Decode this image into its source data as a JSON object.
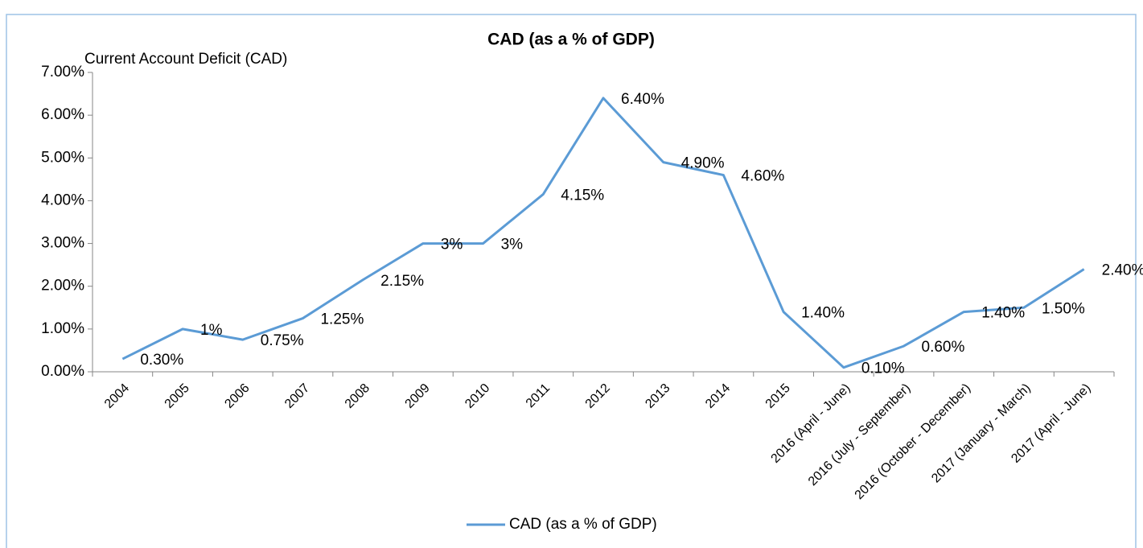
{
  "chart_data": {
    "type": "line",
    "title": "CAD (as a % of GDP)",
    "y_label": "Current Account Deficit (CAD)",
    "categories": [
      "2004",
      "2005",
      "2006",
      "2007",
      "2008",
      "2009",
      "2010",
      "2011",
      "2012",
      "2013",
      "2014",
      "2015",
      "2016 (April - June)",
      "2016 (July - September)",
      "2016 (October - December)",
      "2017 (January - March)",
      "2017 (April - June)"
    ],
    "series": [
      {
        "name": "CAD (as a % of GDP)",
        "color": "#5b9bd5",
        "values": [
          0.3,
          1,
          0.75,
          1.25,
          2.15,
          3,
          3,
          4.15,
          6.4,
          4.9,
          4.6,
          1.4,
          0.1,
          0.6,
          1.4,
          1.5,
          2.4
        ],
        "value_labels": [
          "0.30%",
          "1%",
          "0.75%",
          "1.25%",
          "2.15%",
          "3%",
          "3%",
          "4.15%",
          "6.40%",
          "4.90%",
          "4.60%",
          "1.40%",
          "0.10%",
          "0.60%",
          "1.40%",
          "1.50%",
          "2.40%"
        ]
      }
    ],
    "ylim": [
      0,
      7
    ],
    "yticks": [
      {
        "value": 0,
        "label": "0.00%"
      },
      {
        "value": 1,
        "label": "1.00%"
      },
      {
        "value": 2,
        "label": "2.00%"
      },
      {
        "value": 3,
        "label": "3.00%"
      },
      {
        "value": 4,
        "label": "4.00%"
      },
      {
        "value": 5,
        "label": "5.00%"
      },
      {
        "value": 6,
        "label": "6.00%"
      },
      {
        "value": 7,
        "label": "7.00%"
      }
    ],
    "legend": "bottom"
  }
}
